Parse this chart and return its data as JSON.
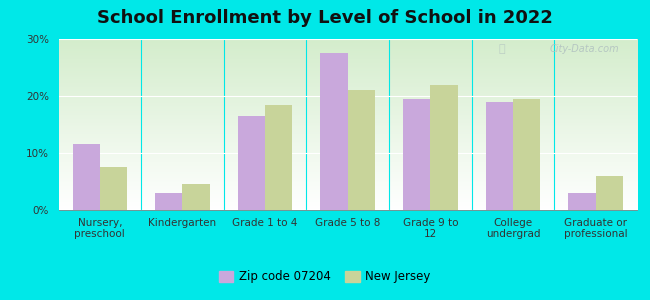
{
  "title": "School Enrollment by Level of School in 2022",
  "categories": [
    "Nursery,\npreschool",
    "Kindergarten",
    "Grade 1 to 4",
    "Grade 5 to 8",
    "Grade 9 to\n12",
    "College\nundergrad",
    "Graduate or\nprofessional"
  ],
  "zip_values": [
    11.5,
    3.0,
    16.5,
    27.5,
    19.5,
    19.0,
    3.0
  ],
  "nj_values": [
    7.5,
    4.5,
    18.5,
    21.0,
    22.0,
    19.5,
    6.0
  ],
  "zip_color": "#c9a8dc",
  "nj_color": "#c8d49a",
  "background_outer": "#00e8e8",
  "ylim": [
    0,
    30
  ],
  "yticks": [
    0,
    10,
    20,
    30
  ],
  "ytick_labels": [
    "0%",
    "10%",
    "20%",
    "30%"
  ],
  "legend_zip_label": "Zip code 07204",
  "legend_nj_label": "New Jersey",
  "watermark": "City-Data.com",
  "title_fontsize": 13,
  "tick_fontsize": 7.5,
  "legend_fontsize": 8.5
}
